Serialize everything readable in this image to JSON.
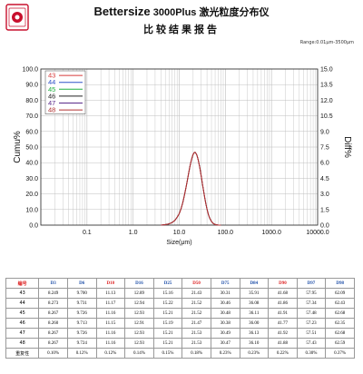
{
  "header": {
    "brand": "Bettersize",
    "model": "3000Plus 激光粒度分布仪",
    "subtitle": "比较结果报告",
    "range_label": "Range:0.01μm-3500μm",
    "logo_color": "#c8102e"
  },
  "chart_data": {
    "type": "line",
    "xscale": "log",
    "xlim": [
      0.01,
      10000
    ],
    "ylim_left": [
      0,
      100
    ],
    "ylim_right": [
      0,
      15
    ],
    "xlabel": "Size(μm)",
    "ylabel_left": "Cumu%",
    "ylabel_right": "Diff%",
    "x_ticks": [
      "0.1",
      "1.0",
      "10.0",
      "100.0",
      "1000.0",
      "10000.0"
    ],
    "y_ticks_left": [
      "0.0",
      "10.0",
      "20.0",
      "30.0",
      "40.0",
      "50.0",
      "60.0",
      "70.0",
      "80.0",
      "90.0",
      "100.0"
    ],
    "y_ticks_right": [
      "0.0",
      "1.5",
      "3.0",
      "4.5",
      "6.0",
      "7.5",
      "9.0",
      "10.5",
      "12.0",
      "13.5",
      "15.0"
    ],
    "grid": true,
    "legend_position": "top-left",
    "series": [
      {
        "name": "43",
        "color": "#d83a3a"
      },
      {
        "name": "44",
        "color": "#2f52c8"
      },
      {
        "name": "45",
        "color": "#20b040"
      },
      {
        "name": "46",
        "color": "#222222"
      },
      {
        "name": "47",
        "color": "#5a2a8a"
      },
      {
        "name": "48",
        "color": "#b03030"
      }
    ],
    "distribution": {
      "x": [
        4,
        5,
        6,
        7,
        8,
        9,
        10,
        11,
        12,
        13,
        14,
        15,
        16,
        17,
        18,
        19,
        20,
        21,
        22,
        23,
        24,
        25,
        26,
        28,
        30,
        32,
        34,
        36,
        38,
        40,
        43,
        46,
        50,
        55,
        60,
        65,
        70,
        80
      ],
      "y": [
        0,
        0.05,
        0.12,
        0.25,
        0.45,
        0.75,
        1.1,
        1.6,
        2.2,
        2.9,
        3.6,
        4.3,
        5.0,
        5.6,
        6.1,
        6.5,
        6.8,
        6.95,
        7.0,
        6.9,
        6.75,
        6.5,
        6.2,
        5.5,
        4.7,
        3.9,
        3.2,
        2.55,
        2.0,
        1.55,
        1.0,
        0.65,
        0.35,
        0.15,
        0.06,
        0.03,
        0.01,
        0
      ]
    }
  },
  "table": {
    "headers": [
      "编号",
      "D3",
      "D6",
      "D10",
      "D16",
      "D25",
      "D50",
      "D75",
      "D84",
      "D90",
      "D97",
      "D98"
    ],
    "rows": [
      [
        "43",
        "8.249",
        "9.700",
        "11.13",
        "12.89",
        "15.16",
        "21.43",
        "30.31",
        "35.91",
        "41.68",
        "57.95",
        "62.09"
      ],
      [
        "44",
        "8.273",
        "9.731",
        "11.17",
        "12.94",
        "15.22",
        "21.52",
        "30.46",
        "36.08",
        "41.86",
        "57.34",
        "62.43"
      ],
      [
        "45",
        "8.267",
        "9.726",
        "11.16",
        "12.93",
        "15.21",
        "21.52",
        "30.48",
        "36.11",
        "41.91",
        "57.48",
        "62.68"
      ],
      [
        "46",
        "8.260",
        "9.713",
        "11.15",
        "12.91",
        "15.19",
        "21.47",
        "30.38",
        "36.00",
        "41.77",
        "57.23",
        "62.35"
      ],
      [
        "47",
        "8.267",
        "9.726",
        "11.16",
        "12.93",
        "15.21",
        "21.53",
        "30.49",
        "36.13",
        "41.92",
        "57.51",
        "62.68"
      ],
      [
        "48",
        "8.267",
        "9.724",
        "11.16",
        "12.93",
        "15.21",
        "21.53",
        "30.47",
        "36.10",
        "41.88",
        "57.43",
        "62.59"
      ],
      [
        "重复性",
        "0.10%",
        "0.12%",
        "0.12%",
        "0.14%",
        "0.15%",
        "0.18%",
        "0.23%",
        "0.23%",
        "0.22%",
        "0.30%",
        "0.37%"
      ]
    ]
  }
}
